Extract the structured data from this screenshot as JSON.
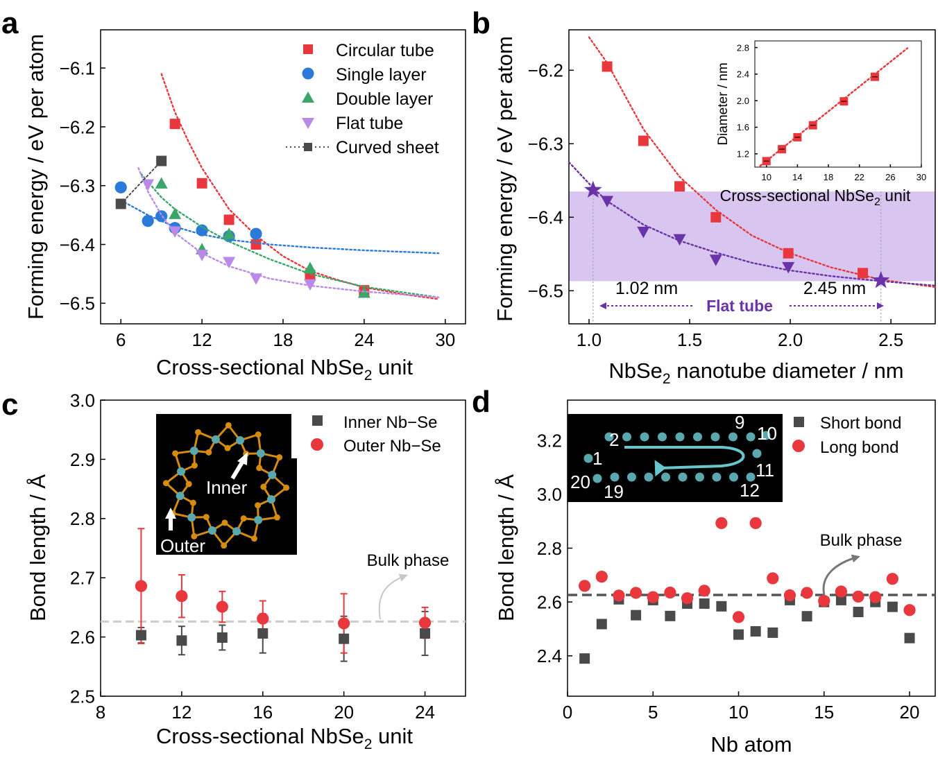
{
  "colors": {
    "red": "#e8383d",
    "blue": "#2a7bd8",
    "green": "#3aa769",
    "violet": "#b98ae8",
    "gray": "#4a4a4a",
    "purple": "#6a33a8",
    "band": "#d8c5f0",
    "cyan": "#67c7cc",
    "orange": "#d58b0c",
    "atom": "#5aa8ae",
    "dash": "#cccccc"
  },
  "chart_data": [
    {
      "id": "a",
      "type": "scatter",
      "panel_label": "a",
      "xlabel": "Cross-sectional NbSe",
      "xlabel_sub": "2",
      "xlabel_tail": " unit",
      "ylabel": "Forming energy / eV per atom",
      "xlim": [
        4.5,
        31.5
      ],
      "ylim": [
        -6.535,
        -6.035
      ],
      "xticks": [
        6,
        12,
        18,
        24,
        30
      ],
      "yticks": [
        -6.5,
        -6.4,
        -6.3,
        -6.2,
        -6.1
      ],
      "series": [
        {
          "name": "Circular tube",
          "marker": "square",
          "color": "red",
          "x": [
            10,
            12,
            14,
            16,
            20,
            24
          ],
          "y": [
            -6.195,
            -6.296,
            -6.358,
            -6.4,
            -6.452,
            -6.478
          ],
          "fit": [
            [
              9.0,
              -6.11
            ],
            [
              10,
              -6.175
            ],
            [
              11,
              -6.225
            ],
            [
              12,
              -6.27
            ],
            [
              14,
              -6.34
            ],
            [
              16,
              -6.385
            ],
            [
              18,
              -6.42
            ],
            [
              20,
              -6.445
            ],
            [
              22,
              -6.46
            ],
            [
              24,
              -6.473
            ],
            [
              27,
              -6.485
            ],
            [
              29.5,
              -6.493
            ]
          ]
        },
        {
          "name": "Single layer",
          "marker": "circle",
          "color": "blue",
          "x": [
            6,
            8,
            9,
            10,
            12,
            14,
            16
          ],
          "y": [
            -6.303,
            -6.36,
            -6.352,
            -6.372,
            -6.376,
            -6.386,
            -6.382
          ],
          "fit": [
            [
              6,
              -6.325
            ],
            [
              8,
              -6.35
            ],
            [
              10,
              -6.37
            ],
            [
              12,
              -6.383
            ],
            [
              14,
              -6.392
            ],
            [
              17,
              -6.4
            ],
            [
              20,
              -6.405
            ],
            [
              24,
              -6.41
            ],
            [
              29.5,
              -6.415
            ]
          ]
        },
        {
          "name": "Double layer",
          "marker": "triangle-up",
          "color": "green",
          "x": [
            9,
            10,
            12,
            14,
            20,
            24
          ],
          "y": [
            -6.296,
            -6.348,
            -6.408,
            -6.382,
            -6.44,
            -6.482
          ],
          "fit": [
            [
              7.5,
              -6.28
            ],
            [
              9,
              -6.32
            ],
            [
              10,
              -6.34
            ],
            [
              12,
              -6.37
            ],
            [
              14,
              -6.395
            ],
            [
              17,
              -6.425
            ],
            [
              20,
              -6.45
            ],
            [
              24,
              -6.472
            ],
            [
              29.5,
              -6.49
            ]
          ]
        },
        {
          "name": "Flat tube",
          "marker": "triangle-down",
          "color": "violet",
          "x": [
            8,
            10,
            12,
            14,
            16,
            20
          ],
          "y": [
            -6.298,
            -6.378,
            -6.418,
            -6.43,
            -6.458,
            -6.468
          ],
          "fit": [
            [
              7.3,
              -6.27
            ],
            [
              8,
              -6.31
            ],
            [
              9,
              -6.35
            ],
            [
              10,
              -6.38
            ],
            [
              12,
              -6.415
            ],
            [
              14,
              -6.437
            ],
            [
              17,
              -6.458
            ],
            [
              20,
              -6.47
            ],
            [
              24,
              -6.48
            ],
            [
              29.5,
              -6.49
            ]
          ]
        },
        {
          "name": "Curved sheet",
          "marker": "square",
          "color": "gray",
          "x": [
            6,
            9
          ],
          "y": [
            -6.331,
            -6.258
          ],
          "line": "dotted"
        }
      ]
    },
    {
      "id": "b",
      "type": "scatter",
      "panel_label": "b",
      "xlabel": "NbSe",
      "xlabel_sub": "2",
      "xlabel_tail": " nanotube diameter / nm",
      "ylabel": "Forming energy / eV per atom",
      "xlim": [
        0.9,
        2.72
      ],
      "ylim": [
        -6.545,
        -6.145
      ],
      "xticks": [
        1.0,
        1.5,
        2.0,
        2.5
      ],
      "xtick_labels": [
        "1.0",
        "1.5",
        "2.0",
        "2.5"
      ],
      "yticks": [
        -6.5,
        -6.4,
        -6.3,
        -6.2
      ],
      "band": [
        -6.487,
        -6.365
      ],
      "band_label": "Flat tube",
      "annotations": [
        "1.02 nm",
        "2.45 nm"
      ],
      "annotation_x": [
        1.02,
        2.45
      ],
      "series": [
        {
          "name": "Circular tube",
          "marker": "square",
          "color": "red",
          "x": [
            1.09,
            1.27,
            1.45,
            1.63,
            1.99,
            2.36
          ],
          "y": [
            -6.195,
            -6.296,
            -6.358,
            -6.4,
            -6.449,
            -6.476
          ],
          "fit": [
            [
              1.0,
              -6.155
            ],
            [
              1.09,
              -6.19
            ],
            [
              1.27,
              -6.28
            ],
            [
              1.45,
              -6.345
            ],
            [
              1.63,
              -6.39
            ],
            [
              1.81,
              -6.425
            ],
            [
              1.99,
              -6.448
            ],
            [
              2.2,
              -6.468
            ],
            [
              2.45,
              -6.485
            ],
            [
              2.72,
              -6.495
            ]
          ]
        },
        {
          "name": "Flat tube",
          "marker": "triangle-down",
          "color": "purple",
          "x": [
            1.09,
            1.27,
            1.45,
            1.63,
            1.99
          ],
          "y": [
            -6.378,
            -6.42,
            -6.43,
            -6.458,
            -6.468
          ],
          "fit": [
            [
              0.9,
              -6.325
            ],
            [
              1.02,
              -6.36
            ],
            [
              1.09,
              -6.378
            ],
            [
              1.27,
              -6.41
            ],
            [
              1.45,
              -6.432
            ],
            [
              1.63,
              -6.448
            ],
            [
              1.81,
              -6.462
            ],
            [
              1.99,
              -6.472
            ],
            [
              2.2,
              -6.48
            ],
            [
              2.45,
              -6.487
            ],
            [
              2.72,
              -6.493
            ]
          ]
        },
        {
          "name": "Flat tube limits",
          "marker": "star",
          "color": "purple",
          "x": [
            1.02,
            2.45
          ],
          "y": [
            -6.363,
            -6.486
          ]
        }
      ],
      "inset": {
        "type": "scatter",
        "xlabel": "Cross-sectional NbSe",
        "xlabel_sub": "2",
        "xlabel_tail": " unit",
        "ylabel": "Diameter / nm",
        "xlim": [
          8.5,
          30
        ],
        "ylim": [
          1.0,
          2.9
        ],
        "xticks": [
          10,
          14,
          18,
          22,
          26,
          30
        ],
        "yticks": [
          1.2,
          1.6,
          2.0,
          2.4,
          2.8
        ],
        "ytick_labels": [
          "1.2",
          "1.6",
          "2.0",
          "2.4",
          "2.8"
        ],
        "x": [
          10,
          12,
          14,
          16,
          20,
          24
        ],
        "y": [
          1.09,
          1.27,
          1.45,
          1.63,
          1.99,
          2.36
        ],
        "fit": [
          [
            9.2,
            1.02
          ],
          [
            28.2,
            2.79
          ]
        ]
      }
    },
    {
      "id": "c",
      "type": "scatter",
      "panel_label": "c",
      "xlabel": "Cross-sectional NbSe",
      "xlabel_sub": "2",
      "xlabel_tail": " unit",
      "ylabel": "Bond length / Å",
      "xlim": [
        8,
        26
      ],
      "ylim": [
        2.5,
        3.0
      ],
      "xticks": [
        8,
        12,
        16,
        20,
        24
      ],
      "yticks": [
        2.5,
        2.6,
        2.7,
        2.8,
        2.9,
        3.0
      ],
      "ytick_labels": [
        "2.5",
        "2.6",
        "2.7",
        "2.8",
        "2.9",
        "3.0"
      ],
      "bulk_value": 2.626,
      "bulk_label": "Bulk phase",
      "series": [
        {
          "name": "Inner Nb−Se",
          "marker": "square",
          "color": "gray",
          "x": [
            10,
            12,
            14,
            16,
            20,
            24
          ],
          "y": [
            2.603,
            2.594,
            2.599,
            2.606,
            2.597,
            2.606
          ],
          "err": [
            0.013,
            0.024,
            0.021,
            0.033,
            0.038,
            0.037
          ]
        },
        {
          "name": "Outer Nb−Se",
          "marker": "circle",
          "color": "red",
          "x": [
            10,
            12,
            14,
            16,
            20,
            24
          ],
          "y": [
            2.686,
            2.669,
            2.651,
            2.631,
            2.623,
            2.624
          ],
          "err": [
            0.097,
            0.036,
            0.026,
            0.03,
            0.05,
            0.026
          ]
        }
      ],
      "inset_labels": [
        "Inner",
        "Outer"
      ]
    },
    {
      "id": "d",
      "type": "scatter",
      "panel_label": "d",
      "xlabel": "Nb atom",
      "ylabel": "Bond length / Å",
      "xlim": [
        0,
        21.5
      ],
      "ylim": [
        2.25,
        3.35
      ],
      "xticks": [
        0,
        5,
        10,
        15,
        20
      ],
      "yticks": [
        2.4,
        2.6,
        2.8,
        3.0,
        3.2
      ],
      "ytick_labels": [
        "2.4",
        "2.6",
        "2.8",
        "3.0",
        "3.2"
      ],
      "bulk_value": 2.626,
      "bulk_label": "Bulk phase",
      "series": [
        {
          "name": "Short bond",
          "marker": "square",
          "color": "gray",
          "x": [
            1,
            2,
            3,
            4,
            5,
            6,
            7,
            8,
            9,
            10,
            11,
            12,
            13,
            14,
            15,
            16,
            17,
            18,
            19,
            20
          ],
          "y": [
            2.39,
            2.518,
            2.61,
            2.551,
            2.607,
            2.548,
            2.594,
            2.594,
            2.584,
            2.479,
            2.491,
            2.486,
            2.607,
            2.547,
            2.6,
            2.607,
            2.563,
            2.6,
            2.582,
            2.466
          ]
        },
        {
          "name": "Long bond",
          "marker": "circle",
          "color": "red",
          "x": [
            1,
            2,
            3,
            4,
            5,
            6,
            7,
            8,
            9,
            10,
            11,
            12,
            13,
            14,
            15,
            16,
            17,
            18,
            19,
            20
          ],
          "y": [
            2.66,
            2.694,
            2.624,
            2.634,
            2.618,
            2.635,
            2.614,
            2.642,
            2.893,
            2.544,
            2.893,
            2.688,
            2.625,
            2.634,
            2.604,
            2.639,
            2.62,
            2.618,
            2.686,
            2.57
          ]
        }
      ],
      "inset_labels": [
        "2",
        "9",
        "10",
        "1",
        "11",
        "20",
        "19",
        "12"
      ]
    }
  ]
}
